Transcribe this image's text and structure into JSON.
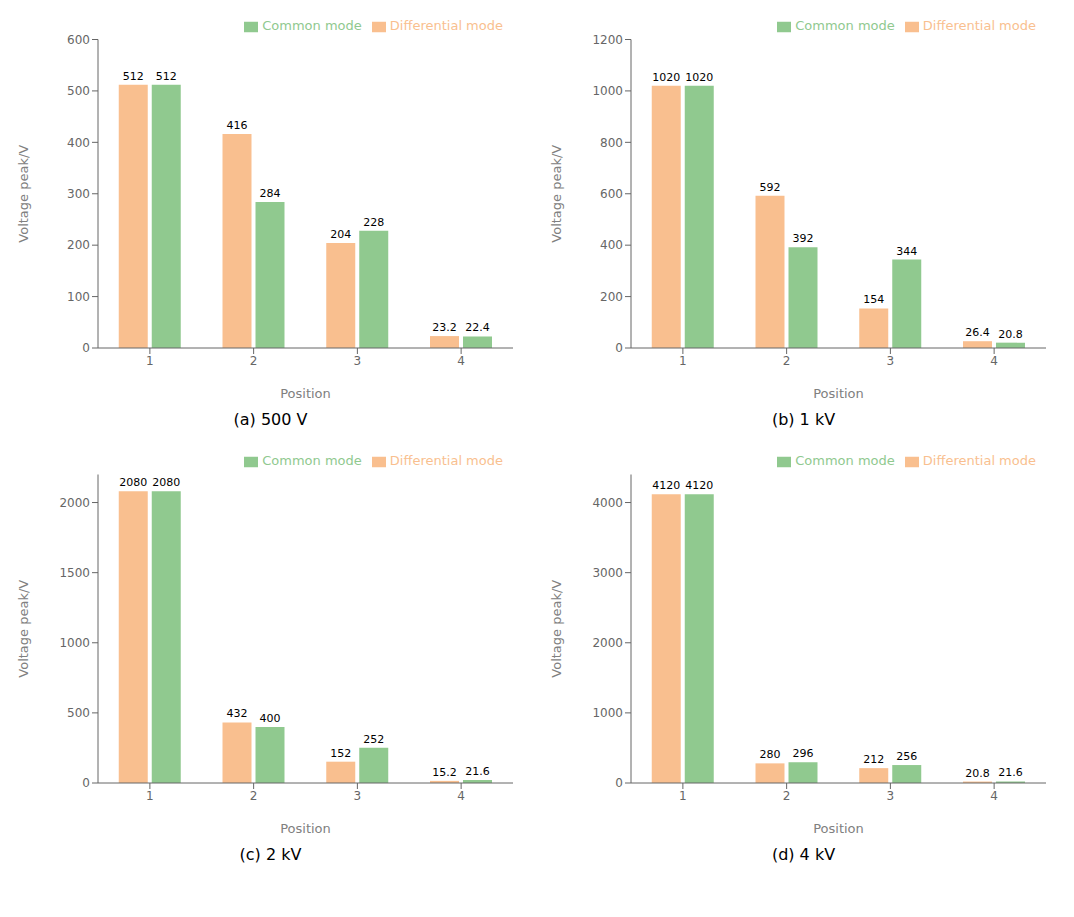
{
  "chart_data": [
    {
      "type": "bar",
      "title": "(a) 500 V",
      "x_label": "Position",
      "y_label": "Voltage peak/V",
      "categories": [
        "1",
        "2",
        "3",
        "4"
      ],
      "series": [
        {
          "name": "Differential mode",
          "color": "#F9BF8F",
          "values": [
            512,
            416,
            204,
            23.2
          ]
        },
        {
          "name": "Common mode",
          "color": "#90C98F",
          "values": [
            512,
            284,
            228,
            22.4
          ]
        }
      ],
      "ylim": [
        0,
        600
      ],
      "yticks": [
        0,
        100,
        200,
        300,
        400,
        500,
        600
      ],
      "grid": false,
      "legend": "upper right",
      "data_labels": true
    },
    {
      "type": "bar",
      "title": "(b) 1 kV",
      "x_label": "Position",
      "y_label": "Voltage peak/V",
      "categories": [
        "1",
        "2",
        "3",
        "4"
      ],
      "series": [
        {
          "name": "Differential mode",
          "color": "#F9BF8F",
          "values": [
            1020,
            592,
            154,
            26.4
          ]
        },
        {
          "name": "Common mode",
          "color": "#90C98F",
          "values": [
            1020,
            392,
            344,
            20.8
          ]
        }
      ],
      "ylim": [
        0,
        1200
      ],
      "yticks": [
        0,
        200,
        400,
        600,
        800,
        1000,
        1200
      ],
      "grid": false,
      "legend": "upper right",
      "data_labels": true
    },
    {
      "type": "bar",
      "title": "(c) 2 kV",
      "x_label": "Position",
      "y_label": "Voltage peak/V",
      "categories": [
        "1",
        "2",
        "3",
        "4"
      ],
      "series": [
        {
          "name": "Differential mode",
          "color": "#F9BF8F",
          "values": [
            2080,
            432,
            152,
            15.2
          ]
        },
        {
          "name": "Common mode",
          "color": "#90C98F",
          "values": [
            2080,
            400,
            252,
            21.6
          ]
        }
      ],
      "ylim": [
        0,
        2200
      ],
      "yticks": [
        0,
        500,
        1000,
        1500,
        2000
      ],
      "grid": false,
      "legend": "upper right",
      "data_labels": true
    },
    {
      "type": "bar",
      "title": "(d) 4 kV",
      "x_label": "Position",
      "y_label": "Voltage peak/V",
      "categories": [
        "1",
        "2",
        "3",
        "4"
      ],
      "series": [
        {
          "name": "Differential mode",
          "color": "#F9BF8F",
          "values": [
            4120,
            280,
            212,
            20.8
          ]
        },
        {
          "name": "Common mode",
          "color": "#90C98F",
          "values": [
            4120,
            296,
            256,
            21.6
          ]
        }
      ],
      "ylim": [
        0,
        4400
      ],
      "yticks": [
        0,
        1000,
        2000,
        3000,
        4000
      ],
      "grid": false,
      "legend": "upper right",
      "data_labels": true
    }
  ]
}
